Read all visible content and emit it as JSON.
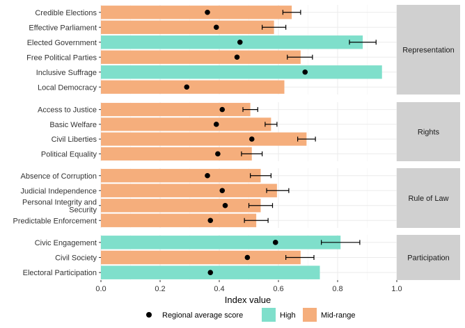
{
  "chart_data": {
    "type": "bar",
    "orientation": "horizontal",
    "xlabel": "Index value",
    "xlim": [
      0,
      1.0
    ],
    "x_ticks": [
      "0.0",
      "0.2",
      "0.4",
      "0.6",
      "0.8",
      "1.0"
    ],
    "grid": true,
    "legend_position": "bottom",
    "legend": {
      "point_label": "Regional average score",
      "categories": [
        {
          "name": "High",
          "color": "#7fdfcb"
        },
        {
          "name": "Mid-range",
          "color": "#f5ae7c"
        }
      ]
    },
    "panels": [
      {
        "name": "Representation",
        "rows": [
          {
            "label": "Credible Elections",
            "value": 0.645,
            "category": "Mid-range",
            "regional_avg": 0.36,
            "error_low": 0.615,
            "error_high": 0.675
          },
          {
            "label": "Effective Parliament",
            "value": 0.585,
            "category": "Mid-range",
            "regional_avg": 0.39,
            "error_low": 0.545,
            "error_high": 0.625
          },
          {
            "label": "Elected Government",
            "value": 0.885,
            "category": "High",
            "regional_avg": 0.47,
            "error_low": 0.84,
            "error_high": 0.93
          },
          {
            "label": "Free Political Parties",
            "value": 0.675,
            "category": "Mid-range",
            "regional_avg": 0.46,
            "error_low": 0.63,
            "error_high": 0.715
          },
          {
            "label": "Inclusive Suffrage",
            "value": 0.95,
            "category": "High",
            "regional_avg": 0.69,
            "error_low": null,
            "error_high": null
          },
          {
            "label": "Local Democracy",
            "value": 0.62,
            "category": "Mid-range",
            "regional_avg": 0.29,
            "error_low": null,
            "error_high": null
          }
        ]
      },
      {
        "name": "Rights",
        "rows": [
          {
            "label": "Access to Justice",
            "value": 0.505,
            "category": "Mid-range",
            "regional_avg": 0.41,
            "error_low": 0.48,
            "error_high": 0.53
          },
          {
            "label": "Basic Welfare",
            "value": 0.575,
            "category": "Mid-range",
            "regional_avg": 0.39,
            "error_low": 0.555,
            "error_high": 0.595
          },
          {
            "label": "Civil Liberties",
            "value": 0.695,
            "category": "Mid-range",
            "regional_avg": 0.51,
            "error_low": 0.665,
            "error_high": 0.725
          },
          {
            "label": "Political Equality",
            "value": 0.51,
            "category": "Mid-range",
            "regional_avg": 0.395,
            "error_low": 0.475,
            "error_high": 0.545
          }
        ]
      },
      {
        "name": "Rule of Law",
        "rows": [
          {
            "label": "Absence of Corruption",
            "value": 0.54,
            "category": "Mid-range",
            "regional_avg": 0.36,
            "error_low": 0.505,
            "error_high": 0.575
          },
          {
            "label": "Judicial Independence",
            "value": 0.595,
            "category": "Mid-range",
            "regional_avg": 0.41,
            "error_low": 0.56,
            "error_high": 0.635
          },
          {
            "label": "Personal Integrity and\nSecurity",
            "value": 0.54,
            "category": "Mid-range",
            "regional_avg": 0.42,
            "error_low": 0.5,
            "error_high": 0.58
          },
          {
            "label": "Predictable Enforcement",
            "value": 0.525,
            "category": "Mid-range",
            "regional_avg": 0.37,
            "error_low": 0.485,
            "error_high": 0.565
          }
        ]
      },
      {
        "name": "Participation",
        "rows": [
          {
            "label": "Civic Engagement",
            "value": 0.81,
            "category": "High",
            "regional_avg": 0.59,
            "error_low": 0.745,
            "error_high": 0.875
          },
          {
            "label": "Civil Society",
            "value": 0.675,
            "category": "Mid-range",
            "regional_avg": 0.495,
            "error_low": 0.625,
            "error_high": 0.72
          },
          {
            "label": "Electoral Participation",
            "value": 0.74,
            "category": "High",
            "regional_avg": 0.37,
            "error_low": null,
            "error_high": null
          }
        ]
      }
    ]
  }
}
